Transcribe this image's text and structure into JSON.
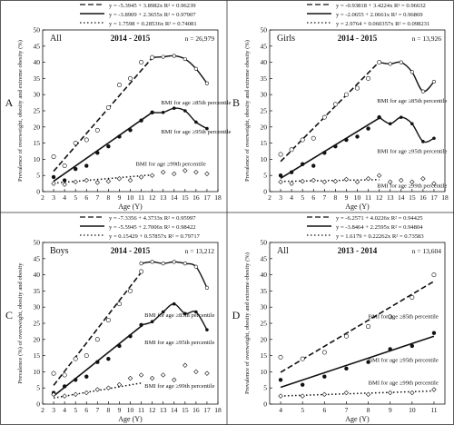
{
  "chart_data": [
    {
      "panel_letter": "A",
      "type": "scatter",
      "group": "All",
      "period": "2014 - 2015",
      "n_text": "n = 26,979",
      "xlabel": "Age (Y)",
      "ylabel": "Prevalence of overweight, obesity and extreme obesity (%)",
      "xlim": [
        2,
        18
      ],
      "ylim": [
        0,
        50
      ],
      "x_ticks": [
        2,
        3,
        4,
        5,
        6,
        7,
        8,
        9,
        10,
        11,
        12,
        13,
        14,
        15,
        16,
        17,
        18
      ],
      "y_ticks": [
        0,
        5,
        10,
        15,
        20,
        25,
        30,
        35,
        40,
        45,
        50
      ],
      "fit_range": [
        3,
        12
      ],
      "legend": [
        {
          "style": "dashed",
          "text": "y = -5.3945 + 3.8982x   R² = 0.96239"
        },
        {
          "style": "solid",
          "text": "y = -3.8909 + 2.3655x   R² = 0.97907"
        },
        {
          "style": "dotted",
          "text": "y = 1.7598 + 0.28536x   R² = 0.74081"
        }
      ],
      "series": [
        {
          "label": "BMI for age ≥85th percentile",
          "marker": "open-circle",
          "line": "dashed",
          "fit": [
            -5.3945,
            3.8982
          ],
          "label_pos": [
            12.8,
            27
          ],
          "points": [
            [
              3,
              10.8
            ],
            [
              4,
              8
            ],
            [
              5,
              15
            ],
            [
              6,
              16
            ],
            [
              7,
              19
            ],
            [
              8,
              26
            ],
            [
              9,
              33
            ],
            [
              10,
              35
            ],
            [
              11,
              40
            ],
            [
              12,
              41.5
            ]
          ],
          "curve": [
            [
              12,
              41.5
            ],
            [
              13,
              41.7
            ],
            [
              14,
              42
            ],
            [
              15,
              41
            ],
            [
              16,
              38
            ],
            [
              17,
              33.5
            ]
          ]
        },
        {
          "label": "BMI for age ≥95th percentile",
          "marker": "filled-circle",
          "line": "solid",
          "fit": [
            -3.8909,
            2.3655
          ],
          "label_pos": [
            12.8,
            18
          ],
          "points": [
            [
              3,
              4.5
            ],
            [
              4,
              3.5
            ],
            [
              5,
              7
            ],
            [
              6,
              8
            ],
            [
              7,
              12
            ],
            [
              8,
              14
            ],
            [
              9,
              17
            ],
            [
              10,
              19
            ],
            [
              11,
              22
            ],
            [
              12,
              24.5
            ]
          ],
          "curve": [
            [
              12,
              24.5
            ],
            [
              13,
              24.5
            ],
            [
              14,
              25.8
            ],
            [
              15,
              25
            ],
            [
              16,
              21.5
            ],
            [
              17,
              19.5
            ]
          ]
        },
        {
          "label": "BMI for age ≥99th percentile",
          "marker": "open-diamond",
          "line": "dotted",
          "fit": [
            1.7598,
            0.28536
          ],
          "label_pos": [
            10.5,
            8
          ],
          "points": [
            [
              3,
              2.5
            ],
            [
              4,
              2.2
            ],
            [
              5,
              3
            ],
            [
              6,
              3.5
            ],
            [
              7,
              2.8
            ],
            [
              8,
              3.2
            ],
            [
              9,
              4
            ],
            [
              10,
              3.5
            ],
            [
              11,
              4.5
            ],
            [
              12,
              5
            ],
            [
              13,
              6
            ],
            [
              14,
              5.5
            ],
            [
              15,
              6.5
            ],
            [
              16,
              6
            ],
            [
              17,
              5.5
            ]
          ],
          "curve": []
        }
      ]
    },
    {
      "panel_letter": "B",
      "type": "scatter",
      "group": "Girls",
      "period": "2014 - 2015",
      "n_text": "n = 13,926",
      "xlabel": "Age (Y)",
      "ylabel": "Prevalence of overweight, obesity and extreme obesity (%)",
      "xlim": [
        2,
        18
      ],
      "ylim": [
        0,
        50
      ],
      "x_ticks": [
        2,
        3,
        4,
        5,
        6,
        7,
        8,
        9,
        10,
        11,
        12,
        13,
        14,
        15,
        16,
        17,
        18
      ],
      "y_ticks": [
        0,
        5,
        10,
        15,
        20,
        25,
        30,
        35,
        40,
        45,
        50
      ],
      "fit_range": [
        3,
        12
      ],
      "legend": [
        {
          "style": "dashed",
          "text": "y = -0.93818 + 3.4224x   R² = 0.96632"
        },
        {
          "style": "solid",
          "text": "y = -2.0655 + 2.0661x   R² = 0.96869"
        },
        {
          "style": "dotted",
          "text": "y = 2.9764 + 0.060357x   R² = 0.098231"
        }
      ],
      "series": [
        {
          "label": "BMI for age ≥85th percentile",
          "marker": "open-circle",
          "line": "dashed",
          "fit": [
            -0.93818,
            3.4224
          ],
          "label_pos": [
            11.8,
            27.5
          ],
          "points": [
            [
              3,
              11.5
            ],
            [
              4,
              13
            ],
            [
              5,
              16
            ],
            [
              6,
              16.5
            ],
            [
              7,
              23
            ],
            [
              8,
              27
            ],
            [
              9,
              30
            ],
            [
              10,
              32
            ],
            [
              11,
              35
            ],
            [
              12,
              40
            ]
          ],
          "curve": [
            [
              12,
              40
            ],
            [
              13,
              39.5
            ],
            [
              14,
              40
            ],
            [
              15,
              37
            ],
            [
              16,
              31
            ],
            [
              17,
              34
            ]
          ]
        },
        {
          "label": "BMI for age ≥95th percentile",
          "marker": "filled-circle",
          "line": "solid",
          "fit": [
            -2.0655,
            2.0661
          ],
          "label_pos": [
            11.8,
            12
          ],
          "points": [
            [
              3,
              5
            ],
            [
              4,
              6
            ],
            [
              5,
              8.5
            ],
            [
              6,
              8
            ],
            [
              7,
              12
            ],
            [
              8,
              14
            ],
            [
              9,
              16
            ],
            [
              10,
              17
            ],
            [
              11,
              19.5
            ],
            [
              12,
              23
            ]
          ],
          "curve": [
            [
              12,
              23
            ],
            [
              13,
              21
            ],
            [
              14,
              23
            ],
            [
              15,
              21
            ],
            [
              16,
              15.5
            ],
            [
              17,
              16.5
            ]
          ]
        },
        {
          "label": "BMI for age ≥99th percentile",
          "marker": "open-diamond",
          "line": "dotted",
          "fit": [
            2.9764,
            0.060357
          ],
          "label_pos": [
            11.8,
            1.2
          ],
          "points": [
            [
              3,
              3
            ],
            [
              4,
              2.5
            ],
            [
              5,
              3.2
            ],
            [
              6,
              3.5
            ],
            [
              7,
              3
            ],
            [
              8,
              3.2
            ],
            [
              9,
              3.8
            ],
            [
              10,
              3
            ],
            [
              11,
              4
            ],
            [
              12,
              5
            ],
            [
              13,
              3
            ],
            [
              14,
              3.5
            ],
            [
              15,
              3
            ],
            [
              16,
              4
            ],
            [
              17,
              2.5
            ]
          ],
          "curve": []
        }
      ]
    },
    {
      "panel_letter": "C",
      "type": "scatter",
      "group": "Boys",
      "period": "2014 - 2015",
      "n_text": "n = 13,212",
      "xlabel": "Age (Y)",
      "ylabel": "Prevalence (%) of overweight, obesity and obesity",
      "xlim": [
        2,
        18
      ],
      "ylim": [
        0,
        50
      ],
      "x_ticks": [
        2,
        3,
        4,
        5,
        6,
        7,
        8,
        9,
        10,
        11,
        12,
        13,
        14,
        15,
        16,
        17,
        18
      ],
      "y_ticks": [
        0,
        5,
        10,
        15,
        20,
        25,
        30,
        35,
        40,
        45,
        50
      ],
      "fit_range": [
        3,
        11
      ],
      "legend": [
        {
          "style": "dashed",
          "text": "y = -7.3356 + 4.3733x   R² = 0.95997"
        },
        {
          "style": "solid",
          "text": "y = -5.5945 + 2.7006x   R² = 0.98422"
        },
        {
          "style": "dotted",
          "text": "y = 0.15429 + 0.57857x   R² = 0.79717"
        }
      ],
      "series": [
        {
          "label": "BMI for age ≥85th percentile",
          "marker": "open-circle",
          "line": "dashed",
          "fit": [
            -7.3356,
            4.3733
          ],
          "label_pos": [
            11.3,
            27
          ],
          "points": [
            [
              3,
              9.5
            ],
            [
              4,
              9
            ],
            [
              5,
              14
            ],
            [
              6,
              15
            ],
            [
              7,
              20
            ],
            [
              8,
              26
            ],
            [
              9,
              31
            ],
            [
              10,
              35
            ],
            [
              11,
              41
            ]
          ],
          "curve": [
            [
              11,
              43.5
            ],
            [
              12,
              44
            ],
            [
              13,
              43.5
            ],
            [
              14,
              44
            ],
            [
              15,
              43.5
            ],
            [
              16,
              42.5
            ],
            [
              17,
              36
            ]
          ]
        },
        {
          "label": "BMI for age ≥95th percentile",
          "marker": "filled-circle",
          "line": "solid",
          "fit": [
            -5.5945,
            2.7006
          ],
          "label_pos": [
            11.3,
            18.5
          ],
          "points": [
            [
              3,
              3.5
            ],
            [
              4,
              5.5
            ],
            [
              5,
              7.5
            ],
            [
              6,
              8.5
            ],
            [
              7,
              13
            ],
            [
              8,
              14
            ],
            [
              9,
              18
            ],
            [
              10,
              21
            ],
            [
              11,
              24.5
            ]
          ],
          "curve": [
            [
              11,
              24.5
            ],
            [
              12,
              25.5
            ],
            [
              13,
              28.5
            ],
            [
              14,
              31
            ],
            [
              15,
              28
            ],
            [
              16,
              28.5
            ],
            [
              17,
              23
            ]
          ]
        },
        {
          "label": "BMI for age ≥99th percentile",
          "marker": "open-diamond",
          "line": "dotted",
          "fit": [
            0.15429,
            0.57857
          ],
          "label_pos": [
            11.3,
            5
          ],
          "points": [
            [
              3,
              3
            ],
            [
              4,
              2.5
            ],
            [
              5,
              3
            ],
            [
              6,
              3.5
            ],
            [
              7,
              4.5
            ],
            [
              8,
              5
            ],
            [
              9,
              6
            ],
            [
              10,
              8
            ],
            [
              11,
              9
            ],
            [
              12,
              8
            ],
            [
              13,
              9
            ],
            [
              14,
              7.5
            ],
            [
              15,
              12
            ],
            [
              16,
              10
            ],
            [
              17,
              9.5
            ]
          ],
          "curve": []
        }
      ]
    },
    {
      "panel_letter": "D",
      "type": "scatter",
      "group": "All",
      "period": "2013 - 2014",
      "n_text": "n = 13,604",
      "xlabel": "Age (Y)",
      "ylabel": "Prevalence of overweight, obesity and extreme obesity (%)",
      "xlim": [
        3.5,
        11.5
      ],
      "ylim": [
        0,
        50
      ],
      "x_ticks": [
        4,
        5,
        6,
        7,
        8,
        9,
        10,
        11
      ],
      "y_ticks": [
        0,
        5,
        10,
        15,
        20,
        25,
        30,
        35,
        40,
        45,
        50
      ],
      "fit_range": [
        4,
        11
      ],
      "legend": [
        {
          "style": "dashed",
          "text": "y = -6.2571 + 4.0226x   R² = 0.94425"
        },
        {
          "style": "solid",
          "text": "y = -3.8464 + 2.2595x   R² = 0.94804"
        },
        {
          "style": "dotted",
          "text": "y = 1.6179 + 0.22262x   R² = 0.73583"
        }
      ],
      "series": [
        {
          "label": "BMI for age ≥85th percentile",
          "marker": "open-circle",
          "line": "dashed",
          "fit": [
            -6.2571,
            4.0226
          ],
          "label_pos": [
            8.0,
            26.5
          ],
          "points": [
            [
              4,
              14.5
            ],
            [
              5,
              14
            ],
            [
              6,
              16
            ],
            [
              7,
              21
            ],
            [
              8,
              24
            ],
            [
              9,
              27
            ],
            [
              10,
              33
            ],
            [
              11,
              40
            ]
          ],
          "curve": []
        },
        {
          "label": "BMI for age ≥95th percentile",
          "marker": "filled-circle",
          "line": "solid",
          "fit": [
            -3.8464,
            2.2595
          ],
          "label_pos": [
            8.0,
            13
          ],
          "points": [
            [
              4,
              7.5
            ],
            [
              5,
              6
            ],
            [
              6,
              8.5
            ],
            [
              7,
              11
            ],
            [
              8,
              13
            ],
            [
              9,
              17
            ],
            [
              10,
              18
            ],
            [
              11,
              22
            ]
          ],
          "curve": []
        },
        {
          "label": "BMI for age ≥99th percentile",
          "marker": "open-diamond",
          "line": "dotted",
          "fit": [
            1.6179,
            0.22262
          ],
          "label_pos": [
            8.0,
            6
          ],
          "points": [
            [
              4,
              2.5
            ],
            [
              5,
              2.5
            ],
            [
              6,
              3
            ],
            [
              7,
              3.5
            ],
            [
              8,
              3
            ],
            [
              9,
              3.5
            ],
            [
              10,
              3.5
            ],
            [
              11,
              4.5
            ]
          ],
          "curve": []
        }
      ]
    }
  ]
}
